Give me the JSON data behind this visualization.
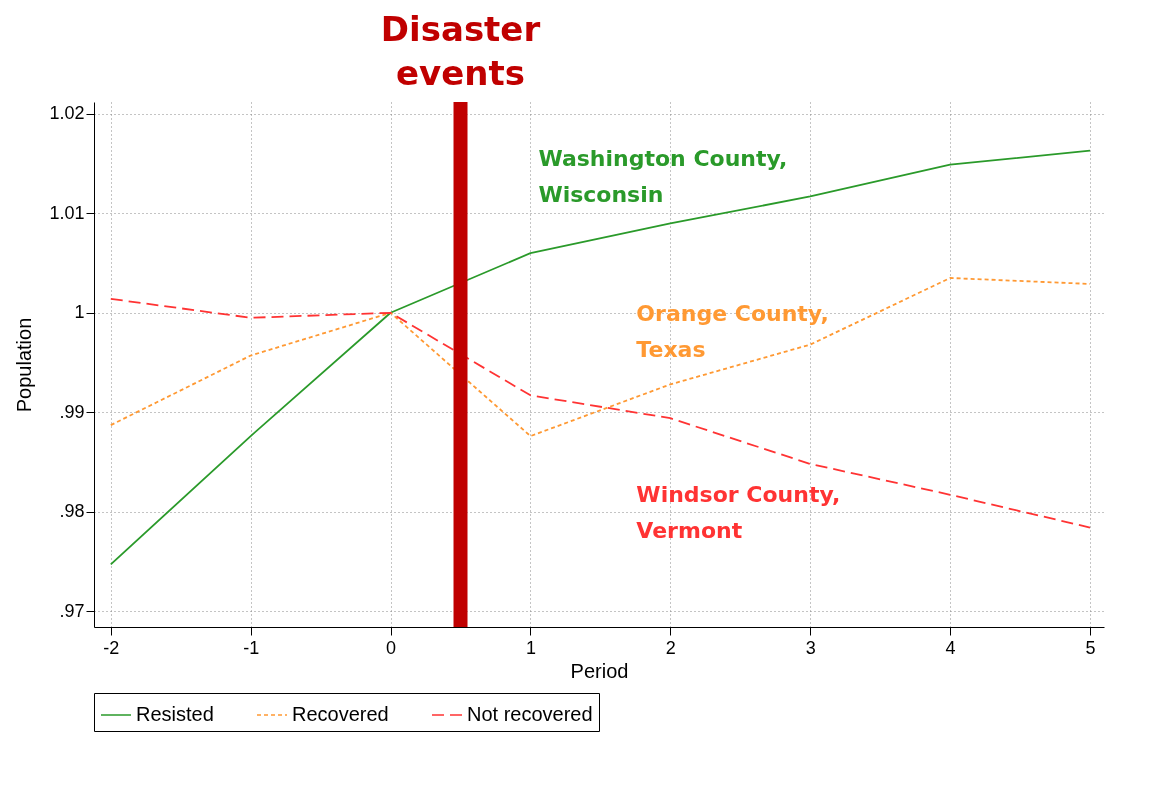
{
  "chart_data": {
    "type": "line",
    "xlabel": "Period",
    "ylabel": "Population",
    "x": [
      -2,
      -1,
      0,
      1,
      2,
      3,
      4,
      5
    ],
    "series": [
      {
        "name": "Resisted",
        "color": "#2a9a2a",
        "line_style": "solid",
        "values": [
          0.9747,
          0.9876,
          1.0,
          1.006,
          1.009,
          1.0117,
          1.0149,
          1.0163
        ]
      },
      {
        "name": "Recovered",
        "color": "#ff9933",
        "line_style": "dotted",
        "values": [
          0.9887,
          0.9957,
          1.0,
          0.9876,
          0.9928,
          0.9968,
          1.0035,
          1.0029
        ]
      },
      {
        "name": "Not recovered",
        "color": "#ff3333",
        "line_style": "dashed",
        "values": [
          1.0014,
          0.9995,
          1.0,
          0.9917,
          0.9894,
          0.9848,
          0.9817,
          0.9784
        ]
      }
    ],
    "xlim": [
      -2.12,
      5.1
    ],
    "ylim": [
      0.9684,
      1.0212
    ],
    "xticks": [
      -2,
      -1,
      0,
      1,
      2,
      3,
      4,
      5
    ],
    "yticks": [
      {
        "value": 0.97,
        "label": ".97"
      },
      {
        "value": 0.98,
        "label": ".98"
      },
      {
        "value": 0.99,
        "label": ".99"
      },
      1,
      1.01,
      1.02
    ],
    "ref_lines": [
      {
        "axis": "x",
        "value": 0.5,
        "label": "Disaster events",
        "color": "#c00000"
      }
    ],
    "annotations": [
      "Washington County,\nWisconsin",
      "Orange County,\n Texas",
      "Windsor County,\nVermont"
    ],
    "grid": true,
    "legend": "bottom"
  }
}
